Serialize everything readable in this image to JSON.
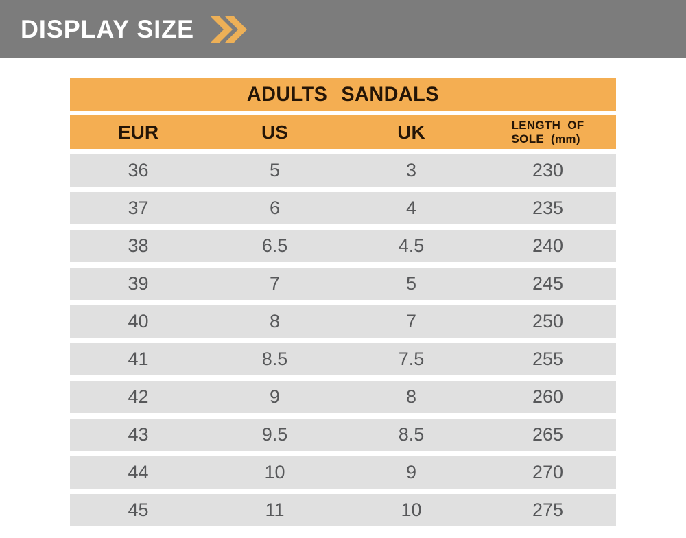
{
  "banner": {
    "title": "DISPLAY SIZE",
    "icon": "double-chevron-right"
  },
  "chart_data": {
    "type": "table",
    "title": "ADULTS SANDALS",
    "columns": [
      "EUR",
      "US",
      "UK",
      "LENGTH OF\nSOLE (mm)"
    ],
    "rows": [
      [
        "36",
        "5",
        "3",
        "230"
      ],
      [
        "37",
        "6",
        "4",
        "235"
      ],
      [
        "38",
        "6.5",
        "4.5",
        "240"
      ],
      [
        "39",
        "7",
        "5",
        "245"
      ],
      [
        "40",
        "8",
        "7",
        "250"
      ],
      [
        "41",
        "8.5",
        "7.5",
        "255"
      ],
      [
        "42",
        "9",
        "8",
        "260"
      ],
      [
        "43",
        "9.5",
        "8.5",
        "265"
      ],
      [
        "44",
        "10",
        "9",
        "270"
      ],
      [
        "45",
        "11",
        "10",
        "275"
      ]
    ]
  },
  "colors": {
    "banner_background": "#7C7C7C",
    "banner_text": "#FFFFFF",
    "chevron": "#EDB057",
    "table_header_background": "#F4AE52",
    "table_header_text": "#241507",
    "row_background": "#E0E0E0",
    "row_text": "#57585A",
    "page_background": "#FFFFFF"
  }
}
